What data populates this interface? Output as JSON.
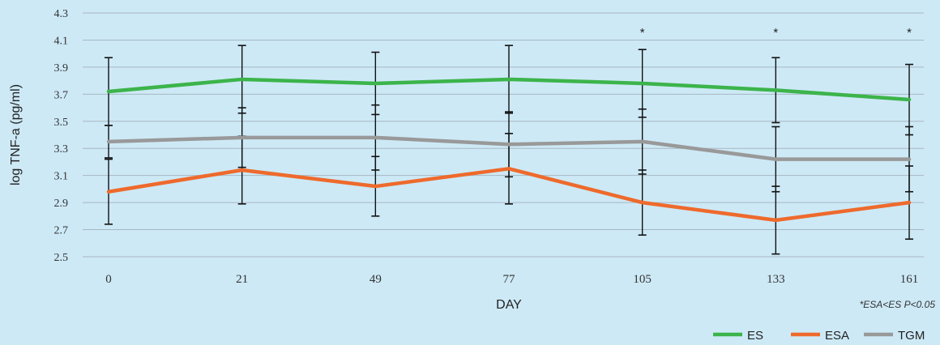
{
  "chart_data": {
    "type": "line",
    "title": "",
    "xlabel": "DAY",
    "ylabel": "log TNF-a (pg/ml)",
    "categories": [
      "0",
      "21",
      "49",
      "77",
      "105",
      "133",
      "161"
    ],
    "yticks": [
      "2.5",
      "2.7",
      "2.9",
      "3.1",
      "3.3",
      "3.5",
      "3.7",
      "3.9",
      "4.1",
      "4.3"
    ],
    "ylim": [
      2.5,
      4.3
    ],
    "grid": "horizontal",
    "legend": "bottom-right",
    "series": [
      {
        "name": "ES",
        "color": "#3cb44b",
        "values": [
          3.72,
          3.81,
          3.78,
          3.81,
          3.78,
          3.73,
          3.66
        ],
        "errors": [
          0.25,
          0.25,
          0.23,
          0.25,
          0.25,
          0.24,
          0.26
        ]
      },
      {
        "name": "ESA",
        "color": "#ee6a2c",
        "values": [
          2.98,
          3.14,
          3.02,
          3.15,
          2.9,
          2.77,
          2.9
        ],
        "errors": [
          0.24,
          0.25,
          0.22,
          0.26,
          0.24,
          0.25,
          0.27
        ]
      },
      {
        "name": "TGM",
        "color": "#999999",
        "values": [
          3.35,
          3.38,
          3.38,
          3.33,
          3.35,
          3.22,
          3.22
        ],
        "errors": [
          0.12,
          0.22,
          0.24,
          0.24,
          0.24,
          0.24,
          0.24
        ]
      }
    ],
    "significance_marks": [
      {
        "category": "105",
        "symbol": "*"
      },
      {
        "category": "133",
        "symbol": "*"
      },
      {
        "category": "161",
        "symbol": "*"
      }
    ],
    "annotation": "*ESA<ES P<0.05"
  }
}
